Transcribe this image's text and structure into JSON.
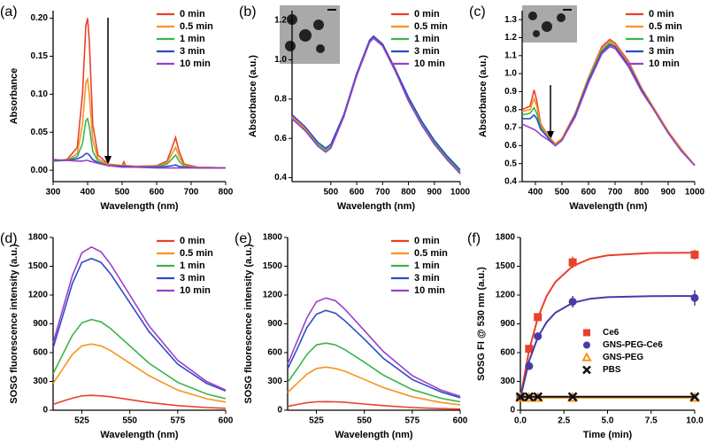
{
  "chart_data": [
    {
      "type": "line",
      "panel_label": "(a)",
      "xlabel": "Wavelength (nm)",
      "ylabel": "Absorbance",
      "x": [
        300,
        340,
        370,
        385,
        395,
        400,
        405,
        415,
        430,
        460,
        500,
        505,
        510,
        540,
        600,
        630,
        645,
        655,
        665,
        680,
        720,
        800
      ],
      "series": [
        {
          "name": "0 min",
          "color": "#e8412c",
          "values": [
            0.012,
            0.014,
            0.03,
            0.1,
            0.19,
            0.2,
            0.17,
            0.06,
            0.02,
            0.008,
            0.006,
            0.011,
            0.006,
            0.005,
            0.006,
            0.012,
            0.03,
            0.043,
            0.025,
            0.008,
            0.004,
            0.003
          ]
        },
        {
          "name": "0.5 min",
          "color": "#f7941d",
          "values": [
            0.012,
            0.013,
            0.022,
            0.06,
            0.115,
            0.12,
            0.1,
            0.04,
            0.015,
            0.007,
            0.005,
            0.008,
            0.005,
            0.004,
            0.005,
            0.01,
            0.022,
            0.03,
            0.018,
            0.006,
            0.004,
            0.003
          ]
        },
        {
          "name": "1 min",
          "color": "#3cb44b",
          "values": [
            0.012,
            0.013,
            0.018,
            0.035,
            0.065,
            0.068,
            0.058,
            0.025,
            0.012,
            0.006,
            0.005,
            0.006,
            0.005,
            0.004,
            0.005,
            0.008,
            0.015,
            0.02,
            0.012,
            0.005,
            0.003,
            0.003
          ]
        },
        {
          "name": "3 min",
          "color": "#2e4bc6",
          "values": [
            0.013,
            0.013,
            0.015,
            0.018,
            0.022,
            0.022,
            0.02,
            0.014,
            0.01,
            0.006,
            0.005,
            0.005,
            0.005,
            0.004,
            0.004,
            0.005,
            0.006,
            0.007,
            0.005,
            0.004,
            0.003,
            0.003
          ]
        },
        {
          "name": "10 min",
          "color": "#9b3fc8",
          "values": [
            0.014,
            0.013,
            0.012,
            0.012,
            0.013,
            0.013,
            0.012,
            0.011,
            0.009,
            0.006,
            0.004,
            0.004,
            0.004,
            0.004,
            0.003,
            0.003,
            0.003,
            0.003,
            0.003,
            0.003,
            0.003,
            0.003
          ]
        }
      ],
      "xlim": [
        300,
        800
      ],
      "ylim": [
        -0.015,
        0.21
      ],
      "xticks": [
        300,
        400,
        500,
        600,
        700,
        800
      ],
      "yticks": [
        {
          "value": 0,
          "label": "0.00"
        },
        {
          "value": 0.05,
          "label": "0.05"
        },
        {
          "value": 0.1,
          "label": "0.10"
        },
        {
          "value": 0.15,
          "label": "0.15"
        },
        {
          "value": 0.2,
          "label": "0.20"
        }
      ],
      "legend": "upper-right"
    },
    {
      "type": "line",
      "panel_label": "(b)",
      "xlabel": "Wavelength (nm)",
      "ylabel": "Absorbance (a.u.)",
      "x": [
        350,
        400,
        450,
        480,
        500,
        550,
        600,
        650,
        665,
        700,
        750,
        800,
        850,
        900,
        950,
        1000
      ],
      "series": [
        {
          "name": "0 min",
          "color": "#e8412c",
          "values": [
            0.71,
            0.65,
            0.57,
            0.54,
            0.56,
            0.72,
            0.93,
            1.1,
            1.12,
            1.08,
            0.95,
            0.8,
            0.68,
            0.58,
            0.5,
            0.43
          ]
        },
        {
          "name": "0.5 min",
          "color": "#f7941d",
          "values": [
            0.71,
            0.65,
            0.57,
            0.54,
            0.56,
            0.72,
            0.93,
            1.1,
            1.12,
            1.08,
            0.95,
            0.8,
            0.68,
            0.58,
            0.5,
            0.43
          ]
        },
        {
          "name": "1 min",
          "color": "#3cb44b",
          "values": [
            0.7,
            0.64,
            0.57,
            0.54,
            0.56,
            0.71,
            0.92,
            1.09,
            1.11,
            1.07,
            0.94,
            0.8,
            0.68,
            0.58,
            0.5,
            0.43
          ]
        },
        {
          "name": "3 min",
          "color": "#2e4bc6",
          "values": [
            0.72,
            0.66,
            0.58,
            0.55,
            0.57,
            0.72,
            0.93,
            1.1,
            1.12,
            1.08,
            0.95,
            0.81,
            0.69,
            0.59,
            0.51,
            0.44
          ]
        },
        {
          "name": "10 min",
          "color": "#9b3fc8",
          "values": [
            0.7,
            0.64,
            0.56,
            0.53,
            0.55,
            0.71,
            0.92,
            1.09,
            1.11,
            1.07,
            0.94,
            0.79,
            0.67,
            0.57,
            0.49,
            0.42
          ]
        }
      ],
      "xlim": [
        350,
        1000
      ],
      "ylim": [
        0.38,
        1.25
      ],
      "xticks": [
        500,
        600,
        700,
        800,
        900,
        1000
      ],
      "yticks": [
        0.4,
        0.6,
        0.8,
        {
          "value": 1,
          "label": "1.0"
        },
        1.2
      ],
      "legend": "upper-right"
    },
    {
      "type": "line",
      "panel_label": "(c)",
      "xlabel": "Wavelength (nm)",
      "ylabel": "Absorbance (a.u.)",
      "x": [
        350,
        380,
        395,
        405,
        420,
        450,
        475,
        500,
        550,
        600,
        650,
        680,
        700,
        750,
        800,
        850,
        900,
        950,
        1000
      ],
      "series": [
        {
          "name": "0 min",
          "color": "#e8412c",
          "values": [
            0.8,
            0.82,
            0.91,
            0.85,
            0.72,
            0.65,
            0.61,
            0.64,
            0.78,
            0.98,
            1.15,
            1.19,
            1.17,
            1.07,
            0.92,
            0.8,
            0.68,
            0.58,
            0.49
          ]
        },
        {
          "name": "0.5 min",
          "color": "#f7941d",
          "values": [
            0.79,
            0.8,
            0.86,
            0.82,
            0.71,
            0.65,
            0.61,
            0.64,
            0.78,
            0.98,
            1.14,
            1.18,
            1.16,
            1.06,
            0.92,
            0.8,
            0.68,
            0.58,
            0.49
          ]
        },
        {
          "name": "1 min",
          "color": "#3cb44b",
          "values": [
            0.77,
            0.78,
            0.81,
            0.78,
            0.7,
            0.64,
            0.6,
            0.63,
            0.77,
            0.97,
            1.13,
            1.17,
            1.15,
            1.05,
            0.91,
            0.79,
            0.67,
            0.57,
            0.49
          ]
        },
        {
          "name": "3 min",
          "color": "#2e4bc6",
          "values": [
            0.75,
            0.75,
            0.77,
            0.75,
            0.69,
            0.64,
            0.6,
            0.63,
            0.77,
            0.96,
            1.12,
            1.16,
            1.15,
            1.05,
            0.91,
            0.79,
            0.67,
            0.57,
            0.49
          ]
        },
        {
          "name": "10 min",
          "color": "#9b3fc8",
          "values": [
            0.72,
            0.7,
            0.69,
            0.68,
            0.66,
            0.63,
            0.6,
            0.63,
            0.76,
            0.95,
            1.11,
            1.15,
            1.14,
            1.04,
            0.9,
            0.79,
            0.67,
            0.57,
            0.49
          ]
        }
      ],
      "xlim": [
        350,
        1000
      ],
      "ylim": [
        0.4,
        1.35
      ],
      "xticks": [
        400,
        500,
        600,
        700,
        800,
        900,
        1000
      ],
      "yticks": [
        0.4,
        0.5,
        0.6,
        0.7,
        0.8,
        0.9,
        {
          "value": 1,
          "label": "1.0"
        },
        1.1,
        1.2,
        1.3
      ],
      "legend": "upper-right"
    },
    {
      "type": "line",
      "panel_label": "(d)",
      "xlabel": "Wavelength (nm)",
      "ylabel": "SOSG fluorescence intensity (a.u.)",
      "x": [
        510,
        515,
        520,
        525,
        530,
        535,
        540,
        550,
        560,
        575,
        590,
        600
      ],
      "series": [
        {
          "name": "0 min",
          "color": "#e8412c",
          "values": [
            60,
            95,
            125,
            150,
            155,
            150,
            140,
            110,
            80,
            48,
            28,
            20
          ]
        },
        {
          "name": "0.5 min",
          "color": "#f7941d",
          "values": [
            280,
            430,
            580,
            670,
            690,
            670,
            620,
            490,
            360,
            210,
            120,
            85
          ]
        },
        {
          "name": "1 min",
          "color": "#3cb44b",
          "values": [
            380,
            580,
            780,
            910,
            945,
            920,
            850,
            670,
            490,
            290,
            170,
            120
          ]
        },
        {
          "name": "3 min",
          "color": "#2e4bc6",
          "values": [
            650,
            980,
            1320,
            1540,
            1580,
            1540,
            1420,
            1120,
            820,
            480,
            280,
            200
          ]
        },
        {
          "name": "10 min",
          "color": "#9b3fc8",
          "values": [
            700,
            1050,
            1400,
            1640,
            1700,
            1650,
            1520,
            1200,
            880,
            520,
            300,
            210
          ]
        }
      ],
      "xlim": [
        510,
        600
      ],
      "ylim": [
        0,
        1800
      ],
      "xticks": [
        525,
        550,
        575,
        600
      ],
      "yticks": [
        0,
        300,
        600,
        900,
        1200,
        1500,
        1800
      ],
      "legend": "upper-right"
    },
    {
      "type": "line",
      "panel_label": "(e)",
      "xlabel": "Wavelength (nm)",
      "ylabel": "SOSG fluorescence intensity (a.u.)",
      "x": [
        510,
        515,
        520,
        525,
        530,
        535,
        540,
        550,
        560,
        575,
        590,
        600
      ],
      "series": [
        {
          "name": "0 min",
          "color": "#e8412c",
          "values": [
            40,
            60,
            78,
            88,
            90,
            88,
            82,
            65,
            48,
            28,
            17,
            12
          ]
        },
        {
          "name": "0.5 min",
          "color": "#f7941d",
          "values": [
            185,
            280,
            375,
            435,
            450,
            435,
            405,
            320,
            235,
            140,
            80,
            56
          ]
        },
        {
          "name": "1 min",
          "color": "#3cb44b",
          "values": [
            290,
            430,
            580,
            680,
            700,
            680,
            630,
            500,
            365,
            215,
            125,
            88
          ]
        },
        {
          "name": "3 min",
          "color": "#2e4bc6",
          "values": [
            430,
            640,
            860,
            1000,
            1040,
            1010,
            930,
            740,
            540,
            320,
            190,
            130
          ]
        },
        {
          "name": "10 min",
          "color": "#9b3fc8",
          "values": [
            480,
            720,
            960,
            1130,
            1170,
            1140,
            1050,
            830,
            610,
            360,
            210,
            145
          ]
        }
      ],
      "xlim": [
        510,
        600
      ],
      "ylim": [
        0,
        1800
      ],
      "xticks": [
        525,
        550,
        575,
        600
      ],
      "yticks": [
        0,
        300,
        600,
        900,
        1200,
        1500,
        1800
      ],
      "legend": "upper-right"
    },
    {
      "type": "scatter",
      "panel_label": "(f)",
      "xlabel": "Time (min)",
      "ylabel": "SOSG FI @ 530 nm (a.u.)",
      "x": [
        0,
        0.5,
        1,
        3,
        10
      ],
      "fit_x": [
        0,
        0.5,
        1,
        1.5,
        2,
        3,
        4,
        5,
        7.5,
        10
      ],
      "series": [
        {
          "name": "Ce6",
          "color": "#e8412c",
          "marker": "square",
          "values": [
            130,
            640,
            970,
            1540,
            1620
          ],
          "errors": [
            0,
            20,
            20,
            60,
            50
          ],
          "fit": [
            130,
            628,
            962,
            1185,
            1335,
            1502,
            1578,
            1613,
            1638,
            1640
          ]
        },
        {
          "name": "GNS-PEG-Ce6",
          "color": "#4a3aa8",
          "marker": "circle",
          "values": [
            130,
            460,
            770,
            1130,
            1170
          ],
          "errors": [
            0,
            20,
            20,
            60,
            80
          ],
          "fit": [
            130,
            514,
            759,
            915,
            1015,
            1119,
            1161,
            1178,
            1189,
            1190
          ]
        },
        {
          "name": "GNS-PEG",
          "color": "#f7941d",
          "marker": "triangle",
          "values": [
            130,
            130,
            130,
            130,
            130
          ],
          "line": true
        },
        {
          "name": "PBS",
          "color": "#111111",
          "marker": "x",
          "values": [
            140,
            140,
            140,
            140,
            140
          ],
          "line": true
        }
      ],
      "xlim": [
        0,
        10
      ],
      "ylim": [
        0,
        1800
      ],
      "xticks": [
        {
          "value": 0,
          "label": "0.0"
        },
        {
          "value": 2.5,
          "label": "2.5"
        },
        {
          "value": 5,
          "label": "5.0"
        },
        {
          "value": 7.5,
          "label": "7.5"
        },
        {
          "value": 10,
          "label": "10.0"
        }
      ],
      "yticks": [
        0,
        300,
        600,
        900,
        1200,
        1500,
        1800
      ],
      "legend": "center-right"
    }
  ]
}
